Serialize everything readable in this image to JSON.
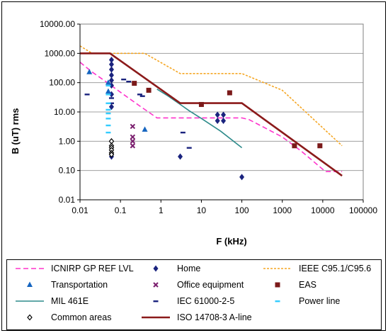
{
  "chart_data": {
    "type": "scatter",
    "xlabel": "F (kHz)",
    "ylabel": "B (uT) rms",
    "xscale": "log",
    "yscale": "log",
    "xlim": [
      0.01,
      100000
    ],
    "ylim": [
      0.01,
      10000
    ],
    "x_ticks": [
      "0.01",
      "0.1",
      "1",
      "10",
      "100",
      "1000",
      "10000",
      "100000"
    ],
    "y_ticks": [
      "10000.00",
      "1000.00",
      "100.00",
      "10.00",
      "1.00",
      "0.10",
      "0.01"
    ],
    "x_tick_values": [
      0.01,
      0.1,
      1,
      10,
      100,
      1000,
      10000,
      100000
    ],
    "y_tick_values": [
      10000,
      1000,
      100,
      10,
      1,
      0.1,
      0.01
    ],
    "grid": "horizontal",
    "plot_background": "#ffffff",
    "legend_position": "bottom",
    "series": [
      {
        "name": "ICNIRP GP REF LVL",
        "kind": "line",
        "style": "dashed",
        "color": "#ff33cc",
        "x": [
          0.01,
          0.02,
          0.05,
          0.1,
          0.3,
          0.8,
          1,
          10,
          100,
          150,
          1000,
          3000,
          10000,
          12000,
          30000
        ],
        "y": [
          500,
          230,
          95,
          47,
          16,
          6.25,
          6.25,
          6.25,
          6.25,
          5.5,
          1.4,
          0.45,
          0.11,
          0.092,
          0.092
        ]
      },
      {
        "name": "Home",
        "kind": "marker",
        "marker": "diamond",
        "color": "#1a237e",
        "x": [
          0.06,
          0.06,
          0.06,
          0.06,
          0.06,
          0.06,
          0.06,
          0.06,
          0.06,
          3,
          25,
          25,
          35,
          35,
          100
        ],
        "y": [
          600,
          420,
          280,
          180,
          120,
          80,
          40,
          15,
          0.3,
          0.3,
          8,
          5,
          8,
          5,
          0.06
        ]
      },
      {
        "name": "IEEE C95.1/C95.6",
        "kind": "line",
        "style": "dotted",
        "color": "#f5a623",
        "x": [
          0.01,
          0.02,
          0.05,
          0.4,
          3,
          5,
          100,
          1000,
          30000
        ],
        "y": [
          1800,
          1000,
          1000,
          1000,
          205,
          205,
          205,
          55,
          0.7
        ]
      },
      {
        "name": "Transportation",
        "kind": "marker",
        "marker": "triangle",
        "color": "#1565c0",
        "x": [
          0.017,
          0.05,
          0.05,
          0.4
        ],
        "y": [
          230,
          100,
          50,
          2.5
        ]
      },
      {
        "name": "Office equipment",
        "kind": "marker",
        "marker": "x",
        "color": "#7b1f6e",
        "x": [
          0.2,
          0.2,
          0.2,
          0.2
        ],
        "y": [
          3.2,
          1.4,
          1.0,
          0.7
        ]
      },
      {
        "name": "EAS",
        "kind": "marker",
        "marker": "square",
        "color": "#7b1a1a",
        "x": [
          0.22,
          0.5,
          10,
          50,
          2000,
          8500
        ],
        "y": [
          95,
          55,
          18,
          45,
          0.7,
          0.7
        ]
      },
      {
        "name": "MIL 461E",
        "kind": "line",
        "style": "solid",
        "color": "#2e8b8b",
        "x": [
          0.8,
          1.5,
          3,
          5,
          10,
          30,
          100
        ],
        "y": [
          60,
          35,
          18,
          11,
          6,
          2.2,
          0.6
        ]
      },
      {
        "name": "IEC 61000-2-5",
        "kind": "marker",
        "marker": "dash",
        "color": "#1a237e",
        "x": [
          0.015,
          0.06,
          0.06,
          0.12,
          0.16,
          0.3,
          0.35,
          3.5,
          5
        ],
        "y": [
          40,
          30,
          20,
          130,
          110,
          40,
          35,
          2,
          0.6
        ]
      },
      {
        "name": "Power line",
        "kind": "marker",
        "marker": "dash",
        "color": "#33ccff",
        "x": [
          0.05,
          0.05,
          0.05,
          0.05,
          0.05,
          0.05,
          0.05,
          0.05
        ],
        "y": [
          80,
          40,
          20,
          12,
          9,
          6,
          3.5,
          2
        ]
      },
      {
        "name": "Common areas",
        "kind": "marker",
        "marker": "diamond-open",
        "color": "#000000",
        "x": [
          0.06,
          0.06,
          0.06,
          0.06,
          0.06,
          0.06
        ],
        "y": [
          1.0,
          0.7,
          0.6,
          0.5,
          0.4,
          0.35
        ]
      },
      {
        "name": "ISO 14708-3 A-line",
        "kind": "line",
        "style": "solid",
        "color": "#8b1a1a",
        "x": [
          0.01,
          0.055,
          3,
          100,
          30000
        ],
        "y": [
          1000,
          1000,
          20,
          20,
          0.066
        ]
      }
    ]
  },
  "legend": {
    "items": [
      {
        "label": "ICNIRP GP REF LVL",
        "symbol": "dashed-line",
        "color": "#ff33cc"
      },
      {
        "label": "Home",
        "symbol": "diamond",
        "color": "#1a237e"
      },
      {
        "label": "IEEE C95.1/C95.6",
        "symbol": "dotted-line",
        "color": "#f5a623"
      },
      {
        "label": "Transportation",
        "symbol": "triangle",
        "color": "#1565c0"
      },
      {
        "label": "Office equipment",
        "symbol": "x",
        "color": "#7b1f6e"
      },
      {
        "label": "EAS",
        "symbol": "square",
        "color": "#7b1a1a"
      },
      {
        "label": "MIL 461E",
        "symbol": "solid-line",
        "color": "#2e8b8b"
      },
      {
        "label": "IEC 61000-2-5",
        "symbol": "dash",
        "color": "#1a237e"
      },
      {
        "label": "Power line",
        "symbol": "dash",
        "color": "#33ccff"
      },
      {
        "label": "Common areas",
        "symbol": "diamond-open",
        "color": "#000000"
      },
      {
        "label": "ISO 14708-3 A-line",
        "symbol": "thick-line",
        "color": "#8b1a1a"
      }
    ]
  }
}
